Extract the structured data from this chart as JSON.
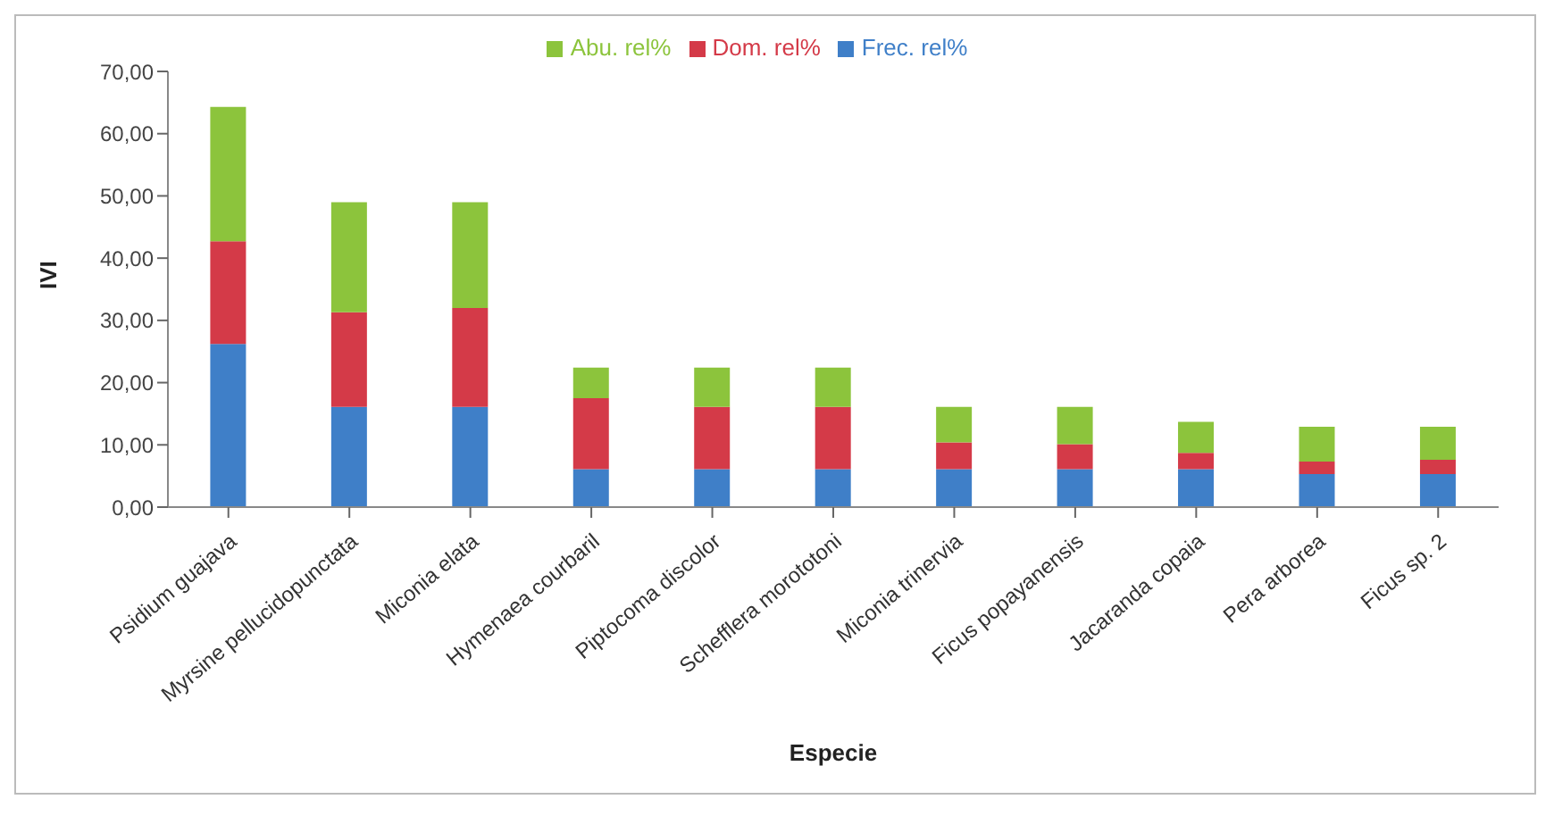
{
  "chart_data": {
    "type": "bar",
    "stacked": true,
    "xlabel": "Especie",
    "ylabel": "IVI",
    "categories": [
      "Psidium guajava",
      "Myrsine pellucidopunctata",
      "Miconia elata",
      "Hymenaea courbaril",
      "Piptocoma discolor",
      "Schefflera morototoni",
      "Miconia trinervia",
      "Ficus popayanensis",
      "Jacaranda copaia",
      "Pera arborea",
      "Ficus sp. 2"
    ],
    "series": [
      {
        "name": "Frec. rel%",
        "color": "#3f7fc8",
        "values": [
          26.2,
          16.1,
          16.1,
          6.1,
          6.1,
          6.1,
          6.1,
          6.1,
          6.1,
          5.3,
          5.3
        ]
      },
      {
        "name": "Dom. rel%",
        "color": "#d43a48",
        "values": [
          16.5,
          15.2,
          15.9,
          11.4,
          10.0,
          10.0,
          4.3,
          4.0,
          2.6,
          2.0,
          2.3
        ]
      },
      {
        "name": "Abu. rel%",
        "color": "#8cc43c",
        "values": [
          21.6,
          17.7,
          17.0,
          4.9,
          6.3,
          6.3,
          5.7,
          6.0,
          5.0,
          5.6,
          5.3
        ]
      }
    ],
    "ylim": [
      0,
      70
    ],
    "yticks": [
      {
        "value": 0,
        "label": "0,00"
      },
      {
        "value": 10,
        "label": "10,00"
      },
      {
        "value": 20,
        "label": "20,00"
      },
      {
        "value": 30,
        "label": "30,00"
      },
      {
        "value": 40,
        "label": "40,00"
      },
      {
        "value": 50,
        "label": "50,00"
      },
      {
        "value": 60,
        "label": "60,00"
      },
      {
        "value": 70,
        "label": "70,00"
      }
    ],
    "legend": "top",
    "grid": false
  }
}
